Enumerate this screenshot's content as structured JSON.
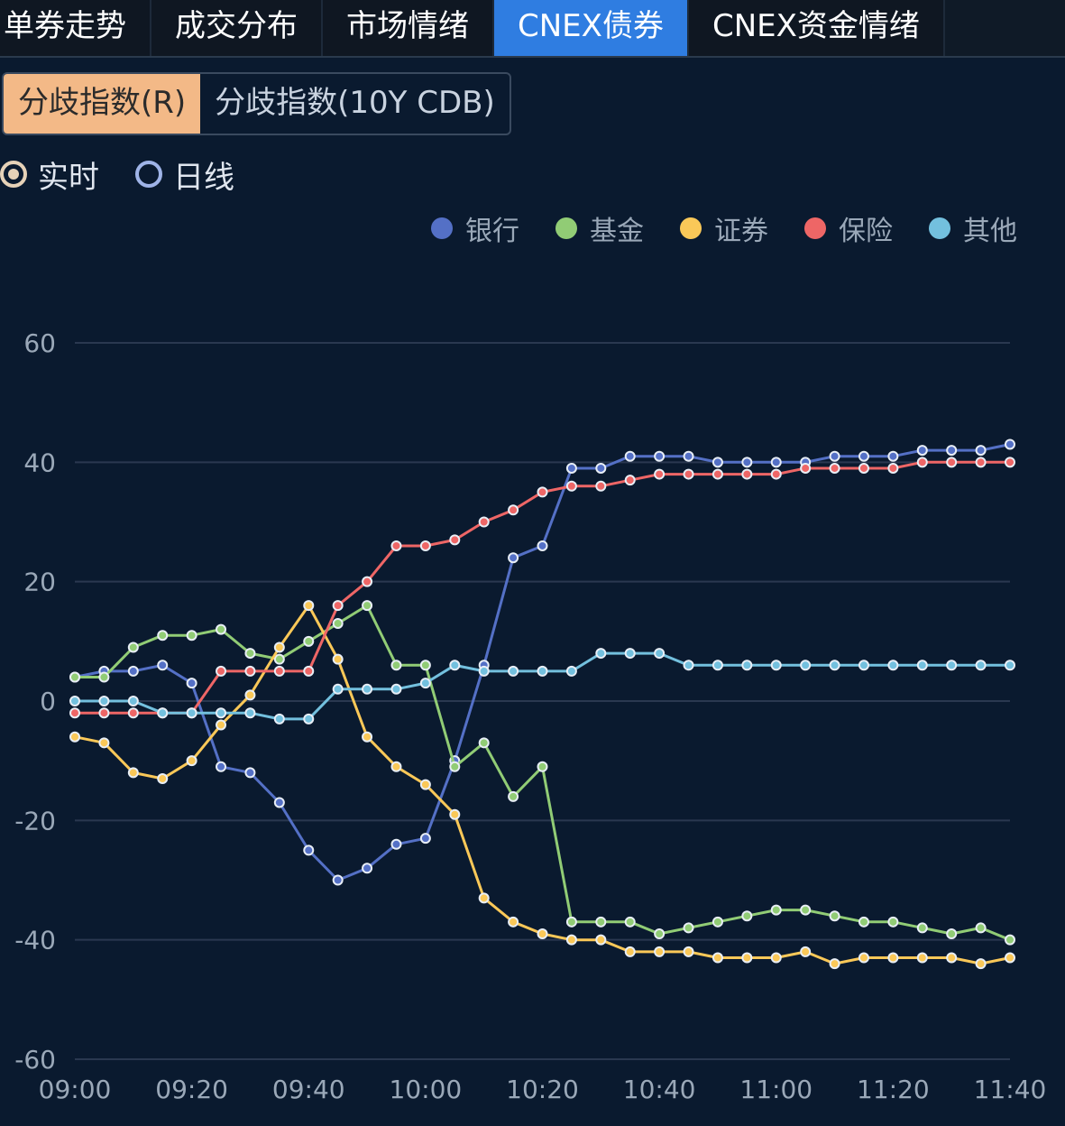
{
  "tabs": [
    {
      "label": "单券走势",
      "active": false
    },
    {
      "label": "成交分布",
      "active": false
    },
    {
      "label": "市场情绪",
      "active": false
    },
    {
      "label": "CNEX债券",
      "active": true
    },
    {
      "label": "CNEX资金情绪",
      "active": false
    }
  ],
  "index_toggle": {
    "options": [
      "分歧指数(R)",
      "分歧指数(10Y CDB)"
    ],
    "selected": 0
  },
  "mode_radio": {
    "options": [
      "实时",
      "日线"
    ],
    "selected": 0
  },
  "colors": {
    "tab_active": "#2f7de1",
    "toggle_active": "#f3b987",
    "background": "#0a1a2f"
  },
  "chart_data": {
    "type": "line",
    "legend_position": "top-right",
    "grid": true,
    "ylim": [
      -60,
      60
    ],
    "yticks": [
      "60",
      "40",
      "20",
      "0",
      "-20",
      "-40",
      "-60"
    ],
    "xticks": [
      "09:00",
      "09:20",
      "09:40",
      "10:00",
      "10:20",
      "10:40",
      "11:00",
      "11:20",
      "11:40"
    ],
    "x": [
      "09:00",
      "09:05",
      "09:10",
      "09:15",
      "09:20",
      "09:25",
      "09:30",
      "09:35",
      "09:40",
      "09:45",
      "09:50",
      "09:55",
      "10:00",
      "10:05",
      "10:10",
      "10:15",
      "10:20",
      "10:25",
      "10:30",
      "10:35",
      "10:40",
      "10:45",
      "10:50",
      "10:55",
      "11:00",
      "11:05",
      "11:10",
      "11:15",
      "11:20",
      "11:25",
      "11:30",
      "11:35",
      "11:40"
    ],
    "series": [
      {
        "name": "银行",
        "color": "#5470c6",
        "values": [
          4,
          5,
          5,
          6,
          3,
          -11,
          -12,
          -17,
          -25,
          -30,
          -28,
          -24,
          -23,
          -10,
          6,
          24,
          26,
          39,
          39,
          41,
          41,
          41,
          40,
          40,
          40,
          40,
          41,
          41,
          41,
          42,
          42,
          42,
          43
        ]
      },
      {
        "name": "基金",
        "color": "#91cc75",
        "values": [
          4,
          4,
          9,
          11,
          11,
          12,
          8,
          7,
          10,
          13,
          16,
          6,
          6,
          -11,
          -7,
          -16,
          -11,
          -37,
          -37,
          -37,
          -39,
          -38,
          -37,
          -36,
          -35,
          -35,
          -36,
          -37,
          -37,
          -38,
          -39,
          -38,
          -40
        ]
      },
      {
        "name": "证券",
        "color": "#fac858",
        "values": [
          -6,
          -7,
          -12,
          -13,
          -10,
          -4,
          1,
          9,
          16,
          7,
          -6,
          -11,
          -14,
          -19,
          -33,
          -37,
          -39,
          -40,
          -40,
          -42,
          -42,
          -42,
          -43,
          -43,
          -43,
          -42,
          -44,
          -43,
          -43,
          -43,
          -43,
          -44,
          -43
        ]
      },
      {
        "name": "保险",
        "color": "#ee6666",
        "values": [
          -2,
          -2,
          -2,
          -2,
          -2,
          5,
          5,
          5,
          5,
          16,
          20,
          26,
          26,
          27,
          30,
          32,
          35,
          36,
          36,
          37,
          38,
          38,
          38,
          38,
          38,
          39,
          39,
          39,
          39,
          40,
          40,
          40,
          40
        ]
      },
      {
        "name": "其他",
        "color": "#73c0de",
        "values": [
          0,
          0,
          0,
          -2,
          -2,
          -2,
          -2,
          -3,
          -3,
          2,
          2,
          2,
          3,
          6,
          5,
          5,
          5,
          5,
          8,
          8,
          8,
          6,
          6,
          6,
          6,
          6,
          6,
          6,
          6,
          6,
          6,
          6,
          6
        ]
      }
    ]
  }
}
